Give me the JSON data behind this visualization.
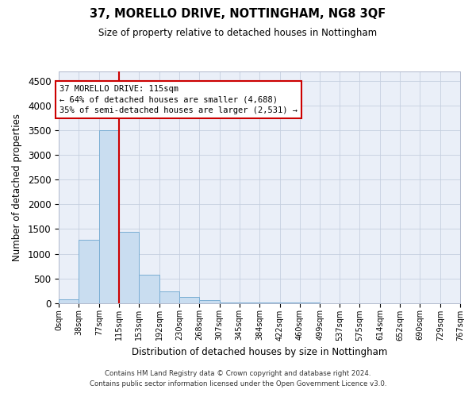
{
  "title": "37, MORELLO DRIVE, NOTTINGHAM, NG8 3QF",
  "subtitle": "Size of property relative to detached houses in Nottingham",
  "xlabel": "Distribution of detached houses by size in Nottingham",
  "ylabel": "Number of detached properties",
  "bar_color": "#c9ddf0",
  "bar_edge_color": "#7aaed4",
  "grid_color": "#c5cfe0",
  "bg_color": "#eaeff8",
  "property_line_x": 115,
  "property_line_color": "#cc0000",
  "annotation_text": "37 MORELLO DRIVE: 115sqm\n← 64% of detached houses are smaller (4,688)\n35% of semi-detached houses are larger (2,531) →",
  "annotation_box_color": "#cc0000",
  "bin_edges": [
    0,
    38,
    77,
    115,
    153,
    192,
    230,
    268,
    307,
    345,
    384,
    422,
    460,
    499,
    537,
    575,
    614,
    652,
    690,
    729,
    767
  ],
  "bar_heights": [
    80,
    1280,
    3500,
    1450,
    580,
    240,
    120,
    50,
    15,
    10,
    5,
    5,
    5,
    0,
    0,
    0,
    0,
    0,
    0,
    0
  ],
  "ylim": [
    0,
    4700
  ],
  "yticks": [
    0,
    500,
    1000,
    1500,
    2000,
    2500,
    3000,
    3500,
    4000,
    4500
  ],
  "footer_line1": "Contains HM Land Registry data © Crown copyright and database right 2024.",
  "footer_line2": "Contains public sector information licensed under the Open Government Licence v3.0."
}
